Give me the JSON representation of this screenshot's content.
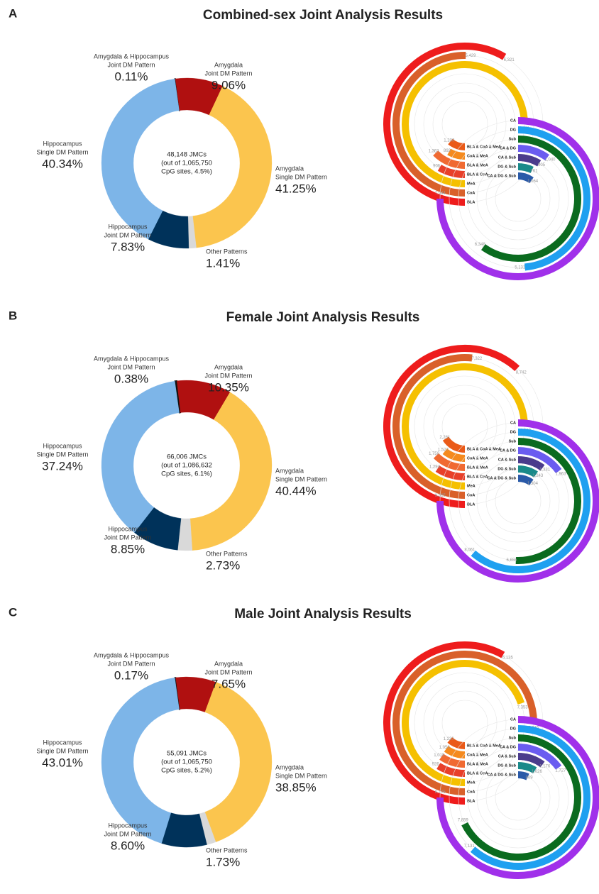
{
  "chart_data": [
    {
      "type": "donut",
      "panel": "A",
      "title": "Combined-sex Joint Analysis Results",
      "center_text": [
        "48,148 JMCs",
        "(out of 1,065,750",
        "CpG sites, 4.5%)"
      ],
      "categories": [
        [
          "Amygdala & Hippocampus",
          "Joint DM Pattern"
        ],
        [
          "Amygdala",
          "Joint DM Pattern"
        ],
        [
          "Amygdala",
          "Single DM Pattern"
        ],
        [
          "Other Patterns"
        ],
        [
          "Hippocampus",
          "Joint DM Pattern"
        ],
        [
          "Hippocampus",
          "Single DM Pattern"
        ]
      ],
      "values": [
        0.11,
        9.06,
        41.25,
        1.41,
        7.83,
        40.34
      ],
      "value_labels": [
        "0.11%",
        "9.06%",
        "41.25%",
        "1.41%",
        "7.83%",
        "40.34%"
      ],
      "colors": [
        "#111111",
        "#b01010",
        "#fbc54e",
        "#d9d9d9",
        "#00325a",
        "#7db5e8"
      ]
    },
    {
      "type": "radial_bar",
      "region": "amygdala",
      "categories": [
        "BLA",
        "CoA",
        "MeA",
        "BLA & CoA",
        "BLA & MeA",
        "CoA & MeA",
        "BLA & CoA & MeA"
      ],
      "values": [
        6321,
        5429,
        8111,
        906,
        1363,
        893,
        1200
      ],
      "value_labels": [
        "6,321",
        "5,429",
        "8,111",
        "906",
        "1,363",
        "893",
        "1,200"
      ],
      "colors": [
        "#ee1c1c",
        "#d9602a",
        "#f5c000",
        "#e8402a",
        "#f06a32",
        "#f58a1e",
        "#ea5a18"
      ]
    },
    {
      "type": "radial_bar",
      "region": "hippocampus",
      "categories": [
        "CA",
        "DG",
        "Sub",
        "CA & DG",
        "CA & Sub",
        "DG & Sub",
        "CA & DG & Sub"
      ],
      "values": [
        7944,
        5131,
        6348,
        1040,
        905,
        761,
        1064
      ],
      "value_labels": [
        "7,944",
        "5,131",
        "6,348",
        "1,040",
        "905",
        "761",
        "1,064"
      ],
      "colors": [
        "#a030ea",
        "#1fa0f0",
        "#0a6b1f",
        "#6a5cf0",
        "#4b3c8c",
        "#1a8a8a",
        "#2a5aa8"
      ]
    },
    {
      "type": "donut",
      "panel": "B",
      "title": "Female Joint Analysis Results",
      "center_text": [
        "66,006 JMCs",
        "(out of 1,086,632",
        "CpG sites, 6.1%)"
      ],
      "categories": [
        [
          "Amygdala & Hippocampus",
          "Joint DM Pattern"
        ],
        [
          "Amygdala",
          "Joint DM Pattern"
        ],
        [
          "Amygdala",
          "Single DM Pattern"
        ],
        [
          "Other Patterns"
        ],
        [
          "Hippocampus",
          "Joint DM Pattern"
        ],
        [
          "Hippocampus",
          "Single DM Pattern"
        ]
      ],
      "values": [
        0.38,
        10.35,
        40.44,
        2.73,
        8.85,
        37.24
      ],
      "value_labels": [
        "0.38%",
        "10.35%",
        "40.44%",
        "2.73%",
        "8.85%",
        "37.24%"
      ],
      "colors": [
        "#111111",
        "#b01010",
        "#fbc54e",
        "#d9d9d9",
        "#00325a",
        "#7db5e8"
      ]
    },
    {
      "type": "radial_bar",
      "region": "amygdala",
      "categories": [
        "BLA",
        "CoA",
        "MeA",
        "BLA & CoA",
        "BLA & MeA",
        "CoA & MeA",
        "BLA & CoA & MeA"
      ],
      "values": [
        8742,
        7322,
        10629,
        1294,
        1750,
        1527,
        2261
      ],
      "value_labels": [
        "8,742",
        "7,322",
        "10,629",
        "1,294",
        "1,750",
        "1,527",
        "2,261"
      ],
      "colors": [
        "#ee1c1c",
        "#d9602a",
        "#f5c000",
        "#e8402a",
        "#f06a32",
        "#f58a1e",
        "#ea5a18"
      ]
    },
    {
      "type": "radial_bar",
      "region": "hippocampus",
      "categories": [
        "CA",
        "DG",
        "Sub",
        "CA & DG",
        "CA & Sub",
        "DG & Sub",
        "CA & DG & Sub"
      ],
      "values": [
        9865,
        8061,
        6655,
        1963,
        1331,
        1243,
        1304
      ],
      "value_labels": [
        "9,865",
        "8,061",
        "6,655",
        "1,963",
        "1,331",
        "1,243",
        "1,304"
      ],
      "colors": [
        "#a030ea",
        "#1fa0f0",
        "#0a6b1f",
        "#6a5cf0",
        "#4b3c8c",
        "#1a8a8a",
        "#2a5aa8"
      ]
    },
    {
      "type": "donut",
      "panel": "C",
      "title": "Male Joint Analysis Results",
      "center_text": [
        "55,091 JMCs",
        "(out of 1,065,750",
        "CpG sites, 5.2%)"
      ],
      "categories": [
        [
          "Amygdala & Hippocampus",
          "Joint DM Pattern"
        ],
        [
          "Amygdala",
          "Joint DM Pattern"
        ],
        [
          "Amygdala",
          "Single DM Pattern"
        ],
        [
          "Other Patterns"
        ],
        [
          "Hippocampus",
          "Joint DM Pattern"
        ],
        [
          "Hippocampus",
          "Single DM Pattern"
        ]
      ],
      "values": [
        0.17,
        7.65,
        38.85,
        1.73,
        8.6,
        43.01
      ],
      "value_labels": [
        "0.17%",
        "7.65%",
        "38.85%",
        "1.73%",
        "8.60%",
        "43.01%"
      ],
      "colors": [
        "#111111",
        "#b01010",
        "#fbc54e",
        "#d9d9d9",
        "#00325a",
        "#7db5e8"
      ]
    },
    {
      "type": "radial_bar",
      "region": "amygdala",
      "categories": [
        "BLA",
        "CoA",
        "MeA",
        "BLA & CoA",
        "BLA & MeA",
        "CoA & MeA",
        "BLA & CoA & MeA"
      ],
      "values": [
        6135,
        7915,
        7353,
        926,
        1018,
        1050,
        1220
      ],
      "value_labels": [
        "6,135",
        "7,915",
        "7,353",
        "926",
        "1,018",
        "1,050",
        "1,220"
      ],
      "colors": [
        "#ee1c1c",
        "#d9602a",
        "#f5c000",
        "#e8402a",
        "#f06a32",
        "#f58a1e",
        "#ea5a18"
      ]
    },
    {
      "type": "radial_bar",
      "region": "hippocampus",
      "categories": [
        "CA",
        "DG",
        "Sub",
        "CA & DG",
        "CA & Sub",
        "DG & Sub",
        "CA & DG & Sub"
      ],
      "values": [
        8705,
        7131,
        7859,
        1727,
        1176,
        1026,
        809
      ],
      "value_labels": [
        "8,705",
        "7,131",
        "7,859",
        "1,727",
        "1,176",
        "1,026",
        "809"
      ],
      "colors": [
        "#a030ea",
        "#1fa0f0",
        "#0a6b1f",
        "#6a5cf0",
        "#4b3c8c",
        "#1a8a8a",
        "#2a5aa8"
      ]
    }
  ]
}
